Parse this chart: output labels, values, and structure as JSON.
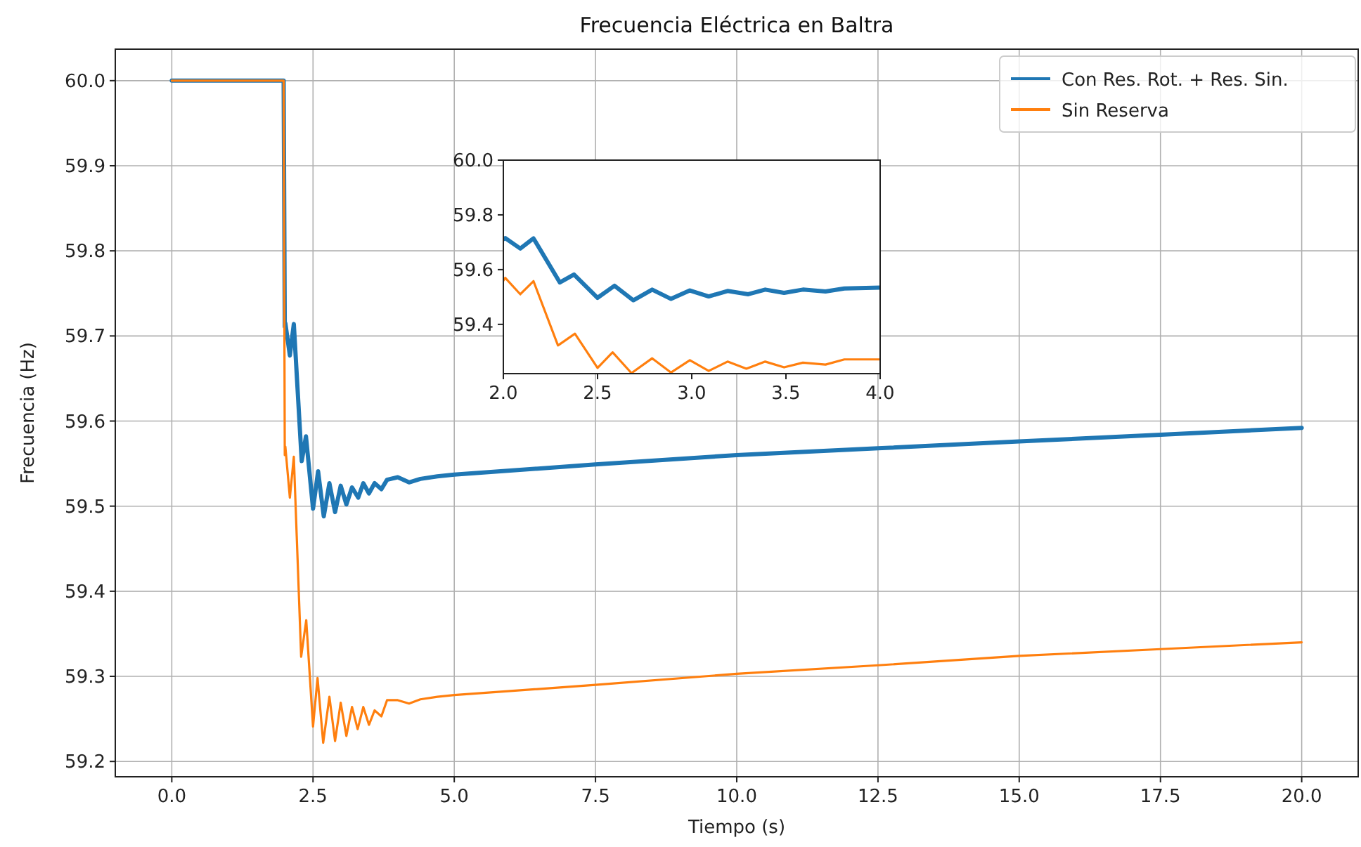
{
  "chart_data": [
    {
      "type": "line",
      "title": "Frecuencia Eléctrica en Baltra",
      "xlabel": "Tiempo (s)",
      "ylabel": "Frecuencia (Hz)",
      "xlim": [
        -1,
        21
      ],
      "ylim": [
        59.182,
        60.037
      ],
      "xticks": [
        {
          "value": 0,
          "label": "0.0"
        },
        {
          "value": 2.5,
          "label": "2.5"
        },
        {
          "value": 5,
          "label": "5.0"
        },
        {
          "value": 7.5,
          "label": "7.5"
        },
        {
          "value": 10,
          "label": "10.0"
        },
        {
          "value": 12.5,
          "label": "12.5"
        },
        {
          "value": 15,
          "label": "15.0"
        },
        {
          "value": 17.5,
          "label": "17.5"
        },
        {
          "value": 20,
          "label": "20.0"
        }
      ],
      "yticks": [
        {
          "value": 59.2,
          "label": "59.2"
        },
        {
          "value": 59.3,
          "label": "59.3"
        },
        {
          "value": 59.4,
          "label": "59.4"
        },
        {
          "value": 59.5,
          "label": "59.5"
        },
        {
          "value": 59.6,
          "label": "59.6"
        },
        {
          "value": 59.7,
          "label": "59.7"
        },
        {
          "value": 59.8,
          "label": "59.8"
        },
        {
          "value": 59.9,
          "label": "59.9"
        },
        {
          "value": 60,
          "label": "60.0"
        }
      ],
      "grid": true,
      "legend": "top right",
      "marker": "none",
      "line_style": "solid",
      "series": [
        {
          "name": "Con Res. Rot. + Res. Sin.",
          "color": "#1f77b4",
          "x": [
            0,
            1.98,
            2.0,
            2.01,
            2.09,
            2.16,
            2.3,
            2.375,
            2.5,
            2.59,
            2.69,
            2.79,
            2.89,
            2.99,
            3.09,
            3.19,
            3.3,
            3.39,
            3.49,
            3.59,
            3.71,
            3.81,
            4.0,
            4.2,
            4.4,
            4.7,
            5,
            7.5,
            10,
            12.5,
            15,
            17.5,
            20
          ],
          "values": [
            60,
            60,
            59.711,
            59.715,
            59.677,
            59.714,
            59.553,
            59.582,
            59.497,
            59.541,
            59.488,
            59.527,
            59.493,
            59.524,
            59.502,
            59.522,
            59.51,
            59.527,
            59.515,
            59.527,
            59.52,
            59.531,
            59.534,
            59.528,
            59.532,
            59.535,
            59.537,
            59.549,
            59.56,
            59.568,
            59.576,
            59.584,
            59.592
          ]
        },
        {
          "name": "Sin Reserva",
          "color": "#ff7f0e",
          "x": [
            0,
            1.98,
            2.0,
            2.01,
            2.09,
            2.16,
            2.29,
            2.38,
            2.5,
            2.58,
            2.68,
            2.79,
            2.89,
            2.99,
            3.09,
            3.19,
            3.29,
            3.39,
            3.49,
            3.59,
            3.71,
            3.81,
            4.0,
            4.2,
            4.4,
            4.7,
            5,
            7.5,
            10,
            12.5,
            15,
            17.5,
            20
          ],
          "values": [
            60,
            60,
            59.56,
            59.57,
            59.51,
            59.558,
            59.323,
            59.366,
            59.241,
            59.298,
            59.222,
            59.276,
            59.224,
            59.269,
            59.23,
            59.264,
            59.238,
            59.264,
            59.243,
            59.26,
            59.253,
            59.272,
            59.272,
            59.268,
            59.273,
            59.276,
            59.278,
            59.29,
            59.303,
            59.313,
            59.324,
            59.332,
            59.34
          ]
        }
      ]
    },
    {
      "type": "line",
      "xlim": [
        2,
        4
      ],
      "ylim": [
        59.22,
        60.0
      ],
      "xticks": [
        {
          "value": 2,
          "label": "2.0"
        },
        {
          "value": 2.5,
          "label": "2.5"
        },
        {
          "value": 3,
          "label": "3.0"
        },
        {
          "value": 3.5,
          "label": "3.5"
        },
        {
          "value": 4,
          "label": "4.0"
        }
      ],
      "yticks": [
        {
          "value": 59.4,
          "label": "59.4"
        },
        {
          "value": 59.6,
          "label": "59.6"
        },
        {
          "value": 59.8,
          "label": "59.8"
        },
        {
          "value": 60,
          "label": "60.0"
        }
      ],
      "marker": "none",
      "line_style": "solid",
      "series": [
        {
          "color": "#1f77b4",
          "x": [
            2.0,
            2.01,
            2.09,
            2.16,
            2.3,
            2.375,
            2.5,
            2.59,
            2.69,
            2.79,
            2.89,
            2.99,
            3.09,
            3.19,
            3.3,
            3.39,
            3.49,
            3.59,
            3.71,
            3.81,
            4.0
          ],
          "values": [
            59.711,
            59.715,
            59.677,
            59.714,
            59.553,
            59.582,
            59.497,
            59.541,
            59.488,
            59.527,
            59.493,
            59.524,
            59.502,
            59.522,
            59.51,
            59.527,
            59.515,
            59.527,
            59.52,
            59.531,
            59.534
          ]
        },
        {
          "color": "#ff7f0e",
          "x": [
            2.0,
            2.01,
            2.09,
            2.16,
            2.29,
            2.38,
            2.5,
            2.58,
            2.68,
            2.79,
            2.89,
            2.99,
            3.09,
            3.19,
            3.29,
            3.39,
            3.49,
            3.59,
            3.71,
            3.81,
            4.0
          ],
          "values": [
            59.56,
            59.57,
            59.51,
            59.558,
            59.323,
            59.366,
            59.241,
            59.298,
            59.222,
            59.276,
            59.224,
            59.269,
            59.23,
            59.264,
            59.238,
            59.264,
            59.243,
            59.26,
            59.253,
            59.272,
            59.272
          ]
        }
      ]
    }
  ]
}
